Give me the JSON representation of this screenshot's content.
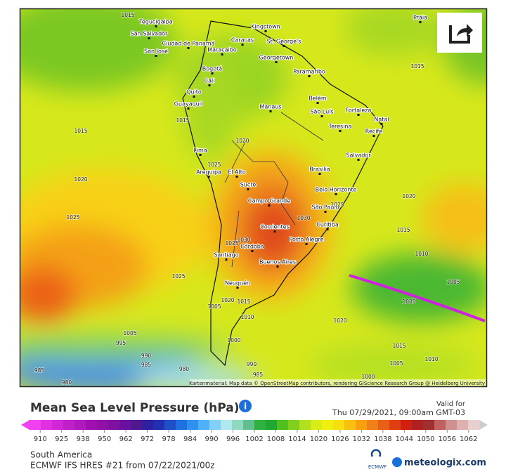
{
  "map": {
    "cities": [
      "Tegucigalpa",
      "San Salvador",
      "Ciudad de Panamá",
      "San José",
      "Caracas",
      "St. George's",
      "Kingstown",
      "Georgetown",
      "Paramaribo",
      "Maracaibo",
      "Bogotá",
      "Cali",
      "Quito",
      "Guayaquil",
      "Manaus",
      "Belém",
      "São Luís",
      "Fortaleza",
      "Natal",
      "Teresina",
      "Recife",
      "Salvador",
      "Lima",
      "Arequipa",
      "El Alto",
      "Sucre",
      "Brasília",
      "Belo Horizonte",
      "Campo Grande",
      "São Paulo",
      "Curitiba",
      "Corrientes",
      "Porto Alegre",
      "Córdoba",
      "Santiago",
      "Buenos Aires",
      "Neuquén",
      "Praia"
    ],
    "isobar_labels": [
      1015,
      1015,
      1015,
      1015,
      1020,
      1020,
      1020,
      1025,
      1025,
      1025,
      1030,
      1030,
      1025,
      1025,
      1015,
      1010,
      1005,
      1005,
      1020,
      1015,
      1010,
      1020,
      1015,
      1010,
      1005,
      1005,
      995,
      990,
      985,
      980,
      990,
      985,
      1000,
      1005,
      1000,
      985,
      980
    ],
    "attribution": "Kartenmaterial: Map data © OpenStreetMap contributors, rendering GIScience Research Group @ Heidelberg University"
  },
  "legend": {
    "title": "Mean Sea Level Pressure (hPa)",
    "valid_label": "Valid for",
    "valid_time": "Thu 07/29/2021, 09:00am GMT-03",
    "ticks": [
      910,
      925,
      938,
      950,
      962,
      972,
      978,
      984,
      990,
      996,
      1002,
      1008,
      1014,
      1020,
      1026,
      1032,
      1038,
      1044,
      1050,
      1056,
      1062
    ],
    "colors": [
      "#f040f0",
      "#e030e0",
      "#d028d8",
      "#c020c8",
      "#b018c0",
      "#a010b0",
      "#9010a8",
      "#8010a0",
      "#6a10a0",
      "#501890",
      "#3020a0",
      "#2030b0",
      "#2050c8",
      "#2070e0",
      "#3090f0",
      "#50b0f8",
      "#80d0f8",
      "#b0e8f0",
      "#90d8c0",
      "#60c090",
      "#30b040",
      "#20a830",
      "#50c020",
      "#80d020",
      "#b0e020",
      "#d8ec18",
      "#f0f010",
      "#f8e010",
      "#f8c010",
      "#f8a010",
      "#f08018",
      "#e86018",
      "#e04010",
      "#d02010",
      "#b02020",
      "#a03030",
      "#c06060",
      "#d09090",
      "#e0b0b0",
      "#e8d0d0"
    ]
  },
  "footer": {
    "region": "South America",
    "model": "ECMWF IFS HRES #21 from 07/22/2021/00z",
    "ecmwf": "ECMWF",
    "brand": "meteologix.com"
  }
}
